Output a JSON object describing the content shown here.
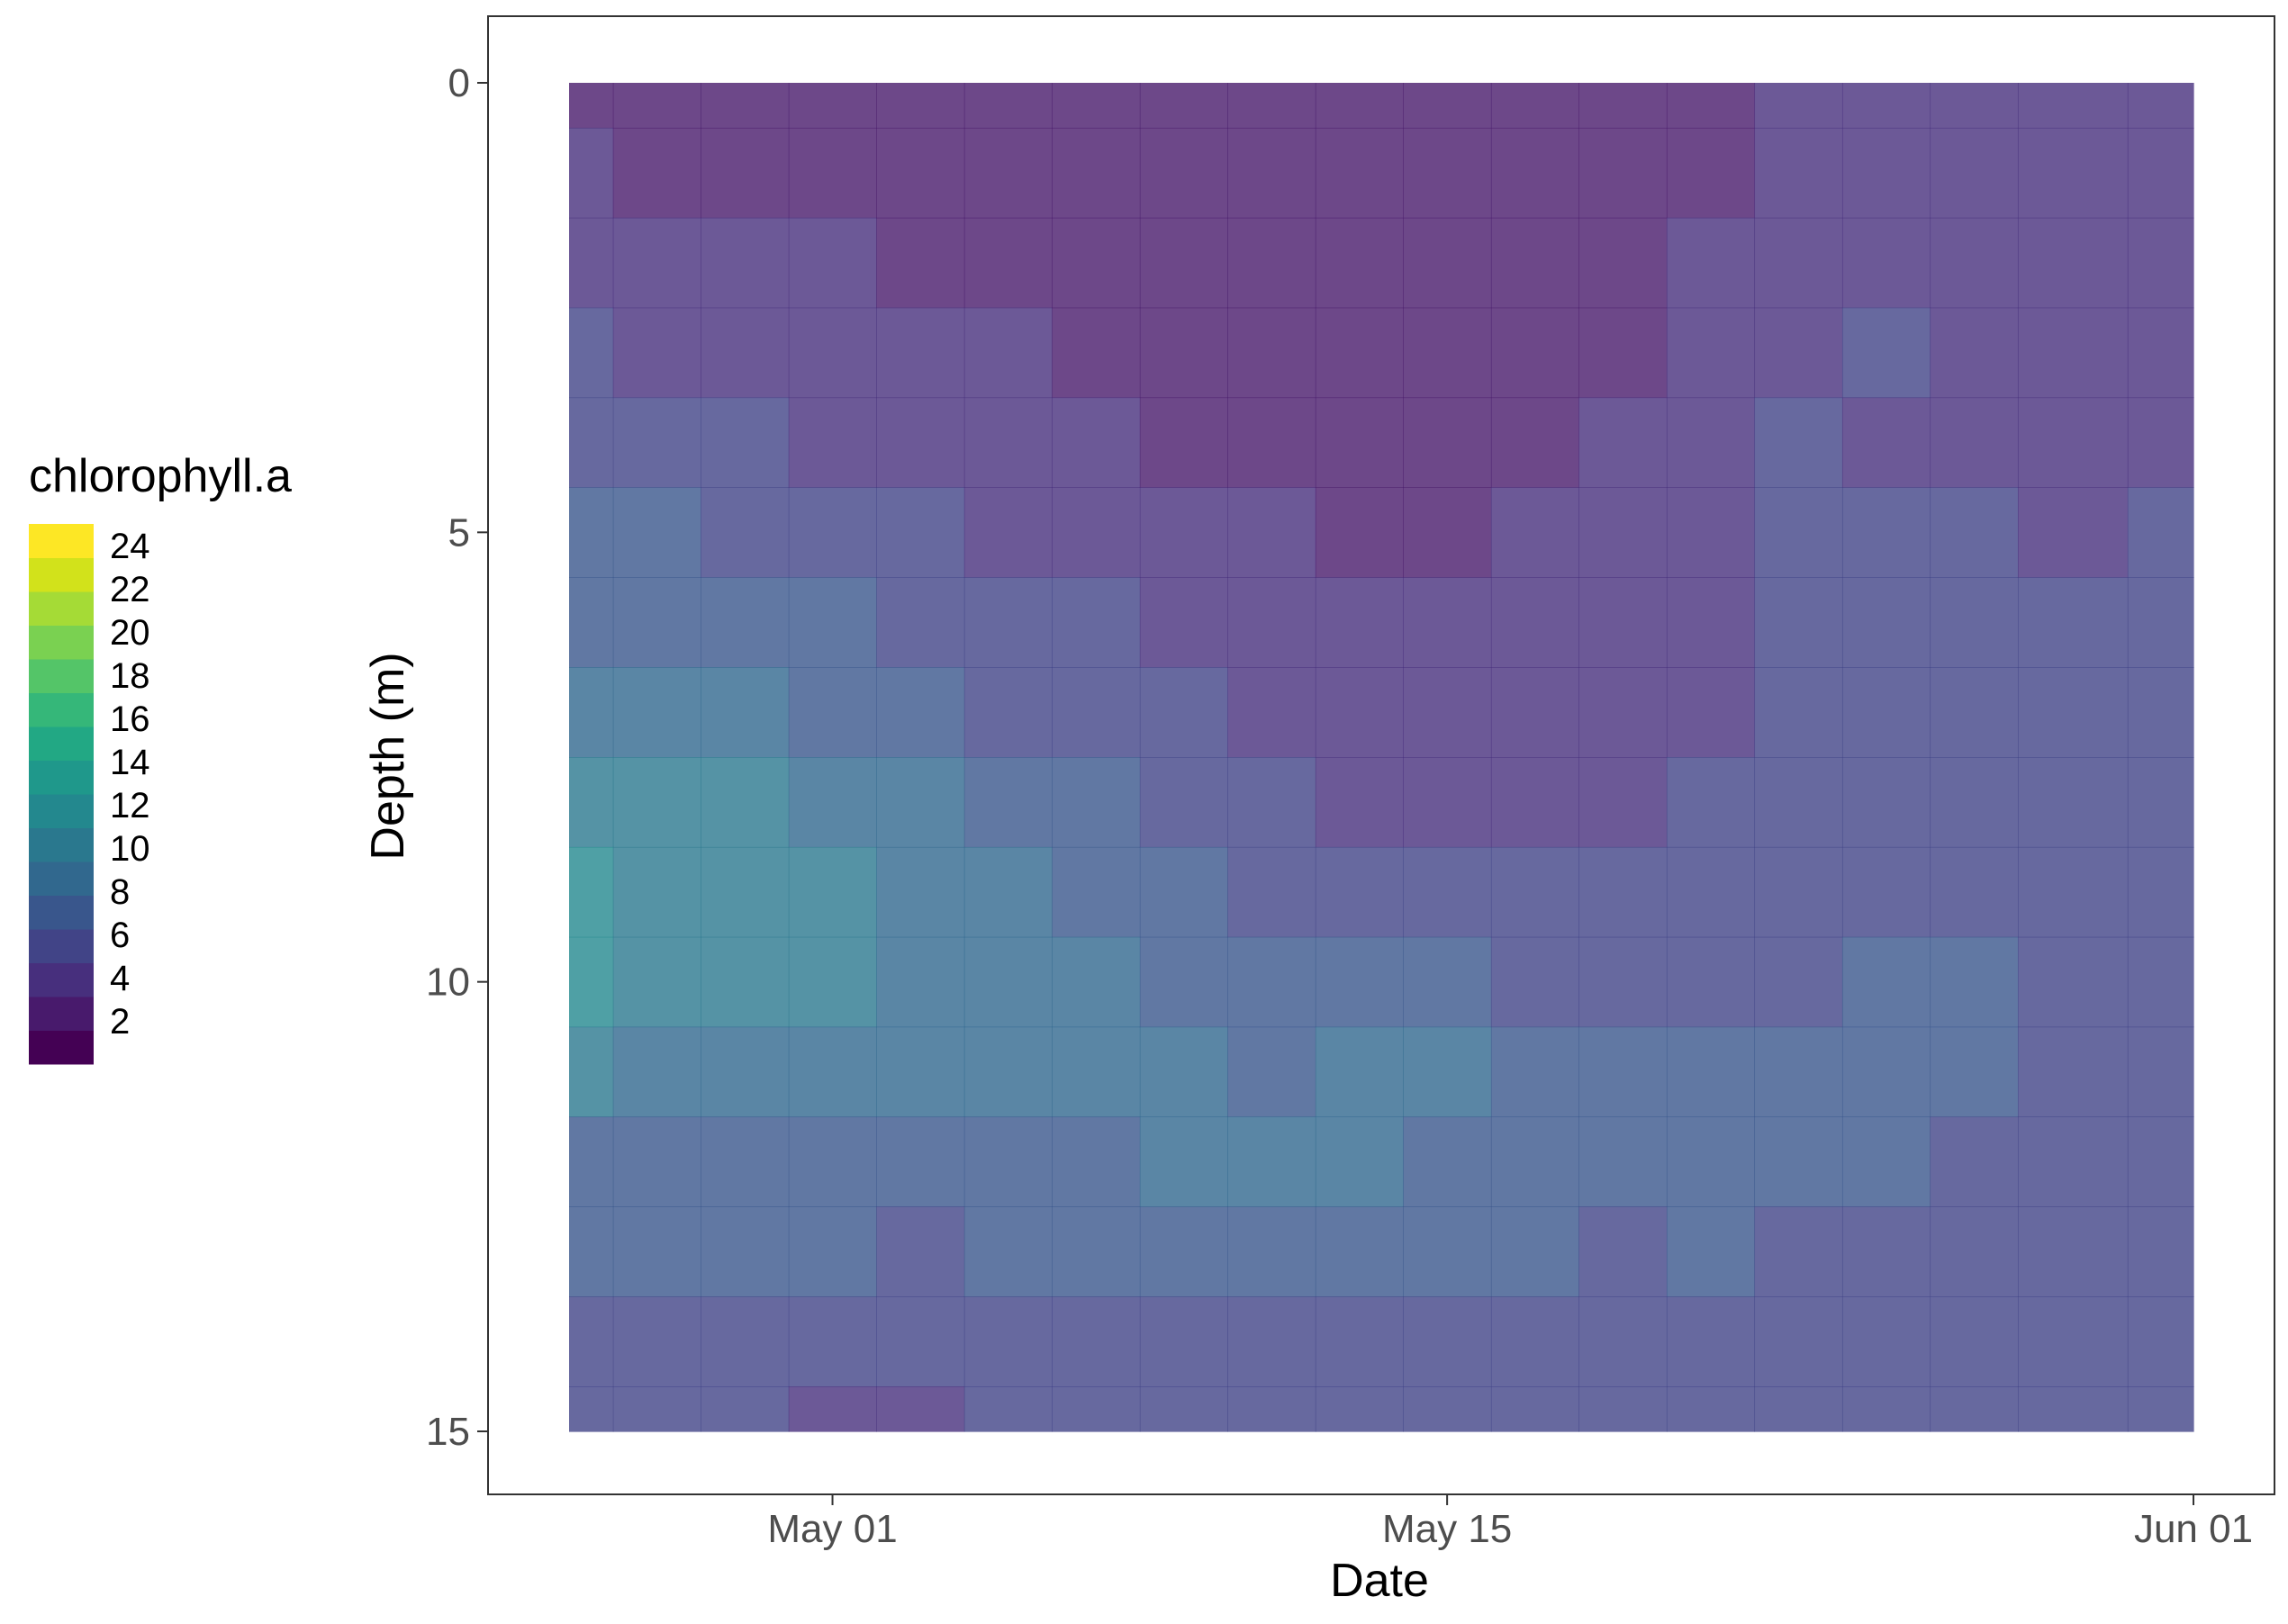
{
  "chart_data": {
    "type": "heatmap",
    "title": "",
    "xlabel": "Date",
    "ylabel": "Depth (m)",
    "x_ticks": [
      {
        "date": "2019-05-01",
        "label": "May 01"
      },
      {
        "date": "2019-05-15",
        "label": "May 15"
      },
      {
        "date": "2019-06-01",
        "label": "Jun 01"
      }
    ],
    "y_ticks": [
      0,
      5,
      10,
      15
    ],
    "x_range": [
      "2019-04-25",
      "2019-06-01"
    ],
    "y_range": [
      0,
      15
    ],
    "y_reversed": true,
    "grid": false,
    "legend": {
      "title": "chlorophyll.a",
      "placement": "left",
      "labels": [
        2,
        4,
        6,
        8,
        10,
        12,
        14,
        16,
        18,
        20,
        22,
        24
      ],
      "levels": [
        {
          "min": 0,
          "max": 2,
          "color": "#440154"
        },
        {
          "min": 2,
          "max": 4,
          "color": "#481a6c"
        },
        {
          "min": 4,
          "max": 6,
          "color": "#472f7d"
        },
        {
          "min": 6,
          "max": 8,
          "color": "#414487"
        },
        {
          "min": 8,
          "max": 10,
          "color": "#39568c"
        },
        {
          "min": 10,
          "max": 12,
          "color": "#31688e"
        },
        {
          "min": 12,
          "max": 14,
          "color": "#2a788e"
        },
        {
          "min": 14,
          "max": 16,
          "color": "#23888e"
        },
        {
          "min": 16,
          "max": 18,
          "color": "#1f988b"
        },
        {
          "min": 18,
          "max": 20,
          "color": "#22a884"
        },
        {
          "min": 20,
          "max": 22,
          "color": "#35b779"
        },
        {
          "min": 22,
          "max": 24,
          "color": "#54c568"
        },
        {
          "min": 24,
          "max": 26,
          "color": "#7ad151"
        },
        {
          "min": 26,
          "max": 28,
          "color": "#a5db36"
        },
        {
          "min": 28,
          "max": 30,
          "color": "#d2e21b"
        },
        {
          "min": 30,
          "max": 32,
          "color": "#fde725"
        }
      ]
    },
    "fill_alpha": 0.8,
    "depths": [
      0,
      1,
      2,
      3,
      4,
      5,
      6,
      7,
      8,
      9,
      10,
      11,
      12,
      13,
      14,
      15
    ],
    "profiles": [
      {
        "date": "2019-04-25",
        "values": [
          3,
          4,
          5,
          6,
          7,
          8,
          9,
          11,
          13,
          15,
          14,
          12,
          9,
          8,
          7,
          6
        ]
      },
      {
        "date": "2019-04-27",
        "values": [
          3,
          3,
          4,
          5,
          6,
          8,
          9,
          10,
          12,
          13,
          13,
          11,
          9,
          8,
          6,
          6
        ]
      },
      {
        "date": "2019-04-29",
        "values": [
          2,
          3,
          4,
          5,
          6,
          7,
          9,
          10,
          12,
          13,
          13,
          11,
          9,
          8,
          6,
          6
        ]
      },
      {
        "date": "2019-05-01",
        "values": [
          2,
          3,
          4,
          4,
          5,
          6,
          8,
          9,
          11,
          12,
          12,
          11,
          9,
          8,
          6,
          5
        ]
      },
      {
        "date": "2019-05-03",
        "values": [
          2,
          3,
          3,
          4,
          5,
          6,
          7,
          8,
          10,
          11,
          11,
          10,
          9,
          7,
          6,
          5
        ]
      },
      {
        "date": "2019-05-05",
        "values": [
          2,
          2,
          3,
          4,
          4,
          5,
          6,
          7,
          9,
          10,
          10,
          10,
          9,
          8,
          7,
          6
        ]
      },
      {
        "date": "2019-05-07",
        "values": [
          2,
          2,
          3,
          3,
          4,
          5,
          6,
          7,
          8,
          9,
          10,
          10,
          9,
          8,
          7,
          6
        ]
      },
      {
        "date": "2019-05-09",
        "values": [
          2,
          2,
          2,
          3,
          3,
          4,
          5,
          6,
          7,
          8,
          9,
          10,
          10,
          8,
          7,
          6
        ]
      },
      {
        "date": "2019-05-11",
        "values": [
          2,
          2,
          2,
          2,
          3,
          4,
          4,
          5,
          6,
          7,
          8,
          9,
          10,
          8,
          7,
          6
        ]
      },
      {
        "date": "2019-05-13",
        "values": [
          2,
          2,
          2,
          2,
          3,
          3,
          4,
          4,
          5,
          7,
          8,
          10,
          10,
          8,
          7,
          6
        ]
      },
      {
        "date": "2019-05-15",
        "values": [
          2,
          2,
          3,
          3,
          3,
          3,
          4,
          4,
          5,
          6,
          8,
          10,
          9,
          8,
          7,
          6
        ]
      },
      {
        "date": "2019-05-17",
        "values": [
          3,
          3,
          3,
          3,
          3,
          4,
          4,
          4,
          5,
          6,
          7,
          8,
          8,
          8,
          7,
          6
        ]
      },
      {
        "date": "2019-05-19",
        "values": [
          3,
          3,
          3,
          3,
          4,
          4,
          4,
          4,
          5,
          6,
          7,
          8,
          8,
          7,
          7,
          6
        ]
      },
      {
        "date": "2019-05-21",
        "values": [
          3,
          3,
          4,
          4,
          5,
          5,
          5,
          5,
          6,
          6,
          7,
          8,
          8,
          8,
          7,
          6
        ]
      },
      {
        "date": "2019-05-23",
        "values": [
          4,
          4,
          5,
          5,
          6,
          7,
          6,
          6,
          6,
          6,
          7,
          8,
          8,
          7,
          7,
          6
        ]
      },
      {
        "date": "2019-05-25",
        "values": [
          4,
          4,
          5,
          6,
          5,
          6,
          6,
          6,
          6,
          6,
          8,
          8,
          8,
          7,
          6,
          6
        ]
      },
      {
        "date": "2019-05-27",
        "values": [
          4,
          4,
          5,
          5,
          5,
          6,
          6,
          6,
          6,
          7,
          8,
          8,
          7,
          7,
          6,
          6
        ]
      },
      {
        "date": "2019-05-29",
        "values": [
          4,
          4,
          5,
          5,
          5,
          5,
          6,
          6,
          6,
          6,
          7,
          7,
          7,
          6,
          6,
          6
        ]
      },
      {
        "date": "2019-06-01",
        "values": [
          4,
          4,
          5,
          5,
          5,
          6,
          7,
          7,
          7,
          7,
          7,
          6,
          6,
          6,
          7,
          6
        ]
      }
    ]
  }
}
